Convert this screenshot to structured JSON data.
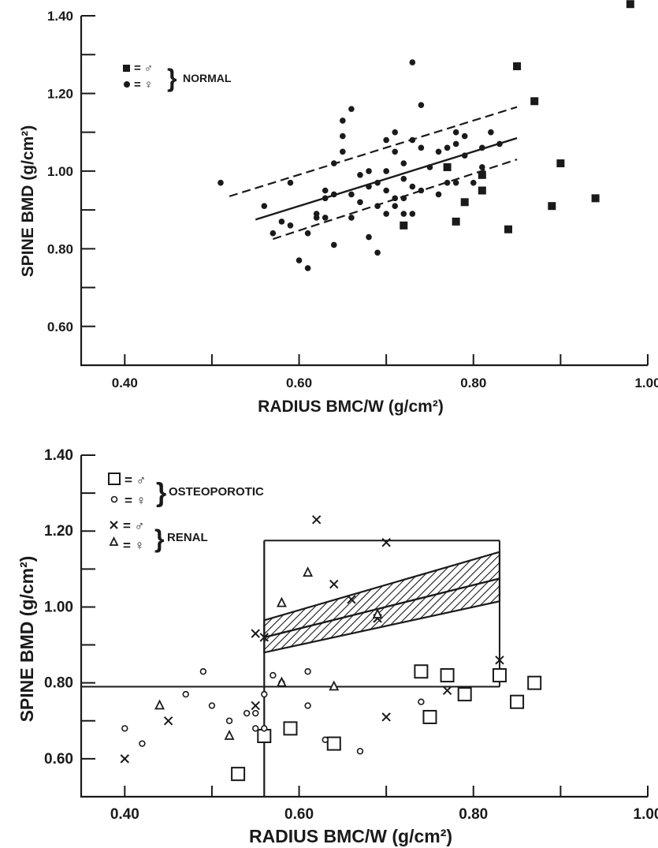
{
  "chart_data": [
    {
      "type": "scatter",
      "title": "",
      "xlabel": "RADIUS BMC/W (g/cm²)",
      "ylabel": "SPINE BMD (g/cm²)",
      "xlim": [
        0.35,
        1.0
      ],
      "ylim": [
        0.5,
        1.4
      ],
      "x_ticks": [
        "0.40",
        "0.60",
        "0.80",
        "1.00"
      ],
      "y_ticks": [
        "0.60",
        "0.80",
        "1.00",
        "1.20",
        "1.40"
      ],
      "legend": {
        "group_label": "NORMAL",
        "placement": "top-left",
        "entries": [
          {
            "symbol": "filled-square",
            "sex": "male"
          },
          {
            "symbol": "filled-circle",
            "sex": "female"
          }
        ]
      },
      "series": [
        {
          "symbol": "filled-square",
          "sex": "male",
          "group": "normal",
          "points": [
            [
              0.72,
              0.86
            ],
            [
              0.77,
              1.01
            ],
            [
              0.78,
              0.87
            ],
            [
              0.79,
              0.92
            ],
            [
              0.81,
              0.95
            ],
            [
              0.81,
              0.99
            ],
            [
              0.84,
              0.85
            ],
            [
              0.85,
              1.27
            ],
            [
              0.87,
              1.18
            ],
            [
              0.89,
              0.91
            ],
            [
              0.9,
              1.02
            ],
            [
              0.94,
              0.93
            ],
            [
              0.98,
              1.43
            ]
          ]
        },
        {
          "symbol": "filled-circle",
          "sex": "female",
          "group": "normal",
          "points": [
            [
              0.51,
              0.97
            ],
            [
              0.56,
              0.91
            ],
            [
              0.57,
              0.84
            ],
            [
              0.58,
              0.87
            ],
            [
              0.59,
              0.97
            ],
            [
              0.59,
              0.86
            ],
            [
              0.6,
              0.77
            ],
            [
              0.61,
              0.84
            ],
            [
              0.61,
              0.75
            ],
            [
              0.62,
              0.88
            ],
            [
              0.62,
              0.89
            ],
            [
              0.63,
              0.95
            ],
            [
              0.63,
              0.93
            ],
            [
              0.63,
              0.88
            ],
            [
              0.64,
              1.02
            ],
            [
              0.64,
              0.81
            ],
            [
              0.64,
              0.94
            ],
            [
              0.65,
              1.05
            ],
            [
              0.65,
              1.09
            ],
            [
              0.65,
              1.13
            ],
            [
              0.66,
              1.16
            ],
            [
              0.66,
              0.94
            ],
            [
              0.66,
              0.88
            ],
            [
              0.67,
              0.99
            ],
            [
              0.67,
              0.92
            ],
            [
              0.68,
              1.0
            ],
            [
              0.68,
              0.83
            ],
            [
              0.68,
              0.96
            ],
            [
              0.69,
              0.91
            ],
            [
              0.69,
              0.97
            ],
            [
              0.69,
              0.79
            ],
            [
              0.7,
              1.0
            ],
            [
              0.7,
              1.08
            ],
            [
              0.7,
              0.95
            ],
            [
              0.7,
              0.89
            ],
            [
              0.71,
              1.1
            ],
            [
              0.71,
              0.93
            ],
            [
              0.71,
              0.91
            ],
            [
              0.71,
              1.05
            ],
            [
              0.72,
              0.98
            ],
            [
              0.72,
              0.89
            ],
            [
              0.72,
              0.93
            ],
            [
              0.72,
              1.02
            ],
            [
              0.73,
              1.28
            ],
            [
              0.73,
              1.08
            ],
            [
              0.73,
              0.96
            ],
            [
              0.73,
              0.89
            ],
            [
              0.74,
              1.17
            ],
            [
              0.74,
              1.06
            ],
            [
              0.74,
              0.95
            ],
            [
              0.75,
              1.01
            ],
            [
              0.76,
              0.94
            ],
            [
              0.76,
              1.05
            ],
            [
              0.77,
              0.97
            ],
            [
              0.77,
              1.06
            ],
            [
              0.78,
              1.07
            ],
            [
              0.78,
              0.97
            ],
            [
              0.78,
              1.1
            ],
            [
              0.79,
              1.04
            ],
            [
              0.79,
              1.09
            ],
            [
              0.8,
              0.97
            ],
            [
              0.81,
              1.01
            ],
            [
              0.81,
              1.06
            ],
            [
              0.82,
              1.1
            ],
            [
              0.83,
              1.07
            ]
          ]
        }
      ],
      "regression": {
        "x": [
          0.55,
          0.85
        ],
        "y": [
          0.875,
          1.085
        ]
      },
      "confidence_band": {
        "upper": {
          "x": [
            0.52,
            0.85
          ],
          "y": [
            0.935,
            1.165
          ]
        },
        "lower": {
          "x": [
            0.57,
            0.85
          ],
          "y": [
            0.825,
            1.03
          ]
        }
      }
    },
    {
      "type": "scatter",
      "title": "",
      "xlabel": "RADIUS BMC/W (g/cm²)",
      "ylabel": "SPINE BMD (g/cm²)",
      "xlim": [
        0.35,
        1.0
      ],
      "ylim": [
        0.5,
        1.4
      ],
      "x_ticks": [
        "0.40",
        "0.60",
        "0.80",
        "1.00"
      ],
      "y_ticks": [
        "0.60",
        "0.80",
        "1.00",
        "1.20",
        "1.40"
      ],
      "legend": {
        "placement": "top-left",
        "groups": [
          {
            "label": "OSTEOPOROTIC",
            "entries": [
              {
                "symbol": "open-square",
                "sex": "male"
              },
              {
                "symbol": "open-circle",
                "sex": "female"
              }
            ]
          },
          {
            "label": "RENAL",
            "entries": [
              {
                "symbol": "cross",
                "sex": "male"
              },
              {
                "symbol": "triangle",
                "sex": "female"
              }
            ]
          }
        ]
      },
      "series": [
        {
          "symbol": "open-square",
          "sex": "male",
          "group": "osteoporotic",
          "points": [
            [
              0.53,
              0.56
            ],
            [
              0.56,
              0.66
            ],
            [
              0.59,
              0.68
            ],
            [
              0.64,
              0.64
            ],
            [
              0.74,
              0.83
            ],
            [
              0.75,
              0.71
            ],
            [
              0.77,
              0.82
            ],
            [
              0.79,
              0.77
            ],
            [
              0.83,
              0.82
            ],
            [
              0.85,
              0.75
            ],
            [
              0.87,
              0.8
            ]
          ]
        },
        {
          "symbol": "open-circle",
          "sex": "female",
          "group": "osteoporotic",
          "points": [
            [
              0.4,
              0.68
            ],
            [
              0.42,
              0.64
            ],
            [
              0.47,
              0.77
            ],
            [
              0.49,
              0.83
            ],
            [
              0.5,
              0.74
            ],
            [
              0.52,
              0.7
            ],
            [
              0.54,
              0.72
            ],
            [
              0.55,
              0.72
            ],
            [
              0.55,
              0.68
            ],
            [
              0.56,
              0.77
            ],
            [
              0.56,
              0.68
            ],
            [
              0.57,
              0.82
            ],
            [
              0.58,
              0.8
            ],
            [
              0.61,
              0.83
            ],
            [
              0.61,
              0.74
            ],
            [
              0.63,
              0.65
            ],
            [
              0.67,
              0.62
            ],
            [
              0.74,
              0.75
            ]
          ]
        },
        {
          "symbol": "cross",
          "sex": "male",
          "group": "renal",
          "points": [
            [
              0.4,
              0.6
            ],
            [
              0.45,
              0.7
            ],
            [
              0.55,
              0.93
            ],
            [
              0.55,
              0.74
            ],
            [
              0.56,
              0.92
            ],
            [
              0.62,
              1.23
            ],
            [
              0.64,
              1.06
            ],
            [
              0.66,
              1.02
            ],
            [
              0.69,
              0.97
            ],
            [
              0.7,
              1.17
            ],
            [
              0.7,
              0.71
            ],
            [
              0.77,
              0.78
            ],
            [
              0.83,
              0.86
            ]
          ]
        },
        {
          "symbol": "triangle",
          "sex": "female",
          "group": "renal",
          "points": [
            [
              0.44,
              0.74
            ],
            [
              0.52,
              0.66
            ],
            [
              0.58,
              0.8
            ],
            [
              0.58,
              1.01
            ],
            [
              0.61,
              1.09
            ],
            [
              0.64,
              0.79
            ],
            [
              0.69,
              0.98
            ]
          ]
        }
      ],
      "reference_lines": {
        "horizontal_y": 0.79,
        "vertical_x": 0.56,
        "box": {
          "x": [
            0.56,
            0.83
          ],
          "y_top": 1.175
        },
        "band_center": {
          "x": [
            0.56,
            0.83
          ],
          "y": [
            0.92,
            1.075
          ]
        },
        "band_upper": {
          "x": [
            0.56,
            0.83
          ],
          "y": [
            0.965,
            1.145
          ]
        },
        "band_lower": {
          "x": [
            0.56,
            0.83
          ],
          "y": [
            0.88,
            1.015
          ]
        }
      }
    }
  ]
}
